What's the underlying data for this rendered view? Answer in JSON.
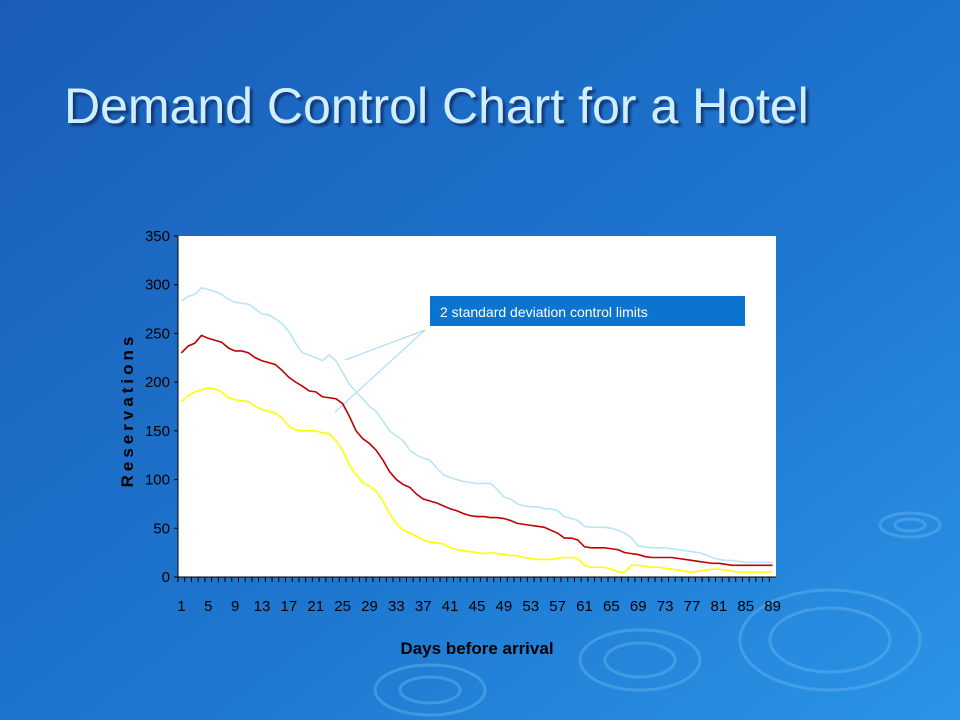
{
  "chart_data": {
    "type": "line",
    "title": "Demand Control Chart for a Hotel",
    "xlabel": "Days before arrival",
    "ylabel": "Reservations",
    "annotation": "2 standard deviation control limits",
    "categories": [
      "1",
      null,
      null,
      null,
      "5",
      null,
      null,
      null,
      "9",
      null,
      null,
      null,
      "13",
      null,
      null,
      null,
      "17",
      null,
      null,
      null,
      "21",
      null,
      null,
      null,
      "25",
      null,
      null,
      null,
      "29",
      null,
      null,
      null,
      "33",
      null,
      null,
      null,
      "37",
      null,
      null,
      null,
      "41",
      null,
      null,
      null,
      "45",
      null,
      null,
      null,
      "49",
      null,
      null,
      null,
      "53",
      null,
      null,
      null,
      "57",
      null,
      null,
      null,
      "61",
      null,
      null,
      null,
      "65",
      null,
      null,
      null,
      "69",
      null,
      null,
      null,
      "73",
      null,
      null,
      null,
      "77",
      null,
      null,
      null,
      "81",
      null,
      null,
      null,
      "85",
      null,
      null,
      null,
      "89"
    ],
    "series": [
      {
        "color": "#b7e6f5",
        "values": [
          283,
          288,
          290,
          297,
          295,
          293,
          290,
          285,
          282,
          281,
          280,
          275,
          270,
          269,
          265,
          260,
          252,
          240,
          230,
          228,
          225,
          222,
          228,
          222,
          210,
          198,
          190,
          183,
          175,
          170,
          160,
          150,
          145,
          140,
          130,
          125,
          122,
          120,
          112,
          105,
          102,
          100,
          98,
          97,
          96,
          96,
          96,
          90,
          82,
          80,
          75,
          73,
          72,
          72,
          70,
          70,
          68,
          62,
          60,
          58,
          52,
          51,
          51,
          51,
          50,
          48,
          45,
          40,
          32,
          31,
          30,
          30,
          30,
          29,
          28,
          27,
          26,
          25,
          23,
          20,
          18,
          17,
          17,
          16,
          15,
          15,
          15,
          15,
          15
        ]
      },
      {
        "color": "#c00000",
        "values": [
          230,
          237,
          240,
          248,
          245,
          243,
          241,
          235,
          232,
          232,
          230,
          225,
          222,
          220,
          218,
          212,
          205,
          200,
          196,
          191,
          190,
          185,
          184,
          183,
          178,
          165,
          150,
          142,
          137,
          130,
          120,
          108,
          100,
          95,
          92,
          85,
          80,
          78,
          76,
          73,
          70,
          68,
          65,
          63,
          62,
          62,
          61,
          61,
          60,
          58,
          55,
          54,
          53,
          52,
          51,
          48,
          45,
          40,
          40,
          38,
          31,
          30,
          30,
          30,
          29,
          28,
          25,
          24,
          23,
          21,
          20,
          20,
          20,
          20,
          19,
          18,
          17,
          16,
          15,
          14,
          14,
          13,
          12,
          12,
          12,
          12,
          12,
          12,
          12
        ]
      },
      {
        "color": "#ffff00",
        "values": [
          180,
          186,
          190,
          192,
          194,
          193,
          190,
          184,
          182,
          181,
          180,
          175,
          172,
          170,
          168,
          163,
          155,
          151,
          150,
          150,
          150,
          148,
          147,
          140,
          130,
          115,
          105,
          97,
          93,
          88,
          78,
          65,
          55,
          48,
          45,
          42,
          38,
          36,
          35,
          34,
          30,
          28,
          27,
          26,
          25,
          24,
          25,
          24,
          23,
          22,
          22,
          20,
          19,
          18,
          18,
          18,
          19,
          20,
          20,
          19,
          12,
          10,
          10,
          10,
          8,
          5,
          5,
          12,
          12,
          11,
          10,
          10,
          9,
          8,
          7,
          6,
          5,
          6,
          7,
          8,
          8,
          7,
          6,
          5,
          5,
          5,
          5,
          5,
          5
        ]
      }
    ],
    "ylim": [
      0,
      350
    ],
    "yticks": [
      0,
      50,
      100,
      150,
      200,
      250,
      300,
      350
    ]
  }
}
